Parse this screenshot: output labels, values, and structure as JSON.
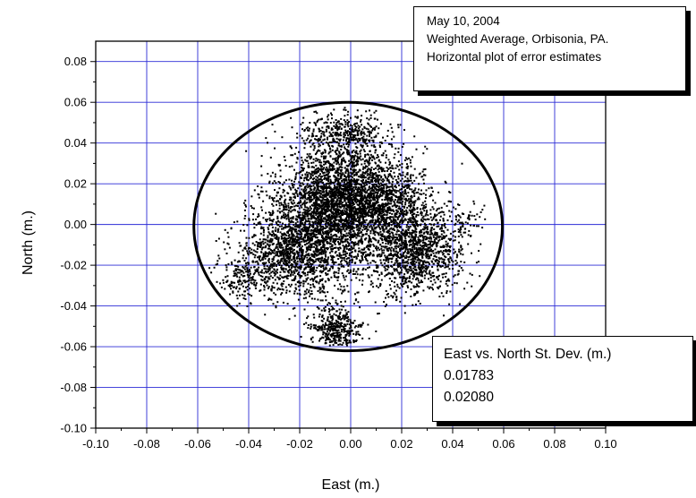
{
  "chart_data": {
    "type": "scatter",
    "title_lines": [
      "May 10, 2004",
      "Weighted Average, Orbisonia, PA.",
      "Horizontal plot of error estimates"
    ],
    "xlabel": "East (m.)",
    "ylabel": "North (m.)",
    "xlim": [
      -0.1,
      0.1
    ],
    "ylim": [
      -0.1,
      0.09
    ],
    "x_ticks": [
      "-0.10",
      "-0.08",
      "-0.06",
      "-0.04",
      "-0.02",
      "0.00",
      "0.02",
      "0.04",
      "0.06",
      "0.08",
      "0.10"
    ],
    "y_ticks": [
      "0.08",
      "0.06",
      "0.04",
      "0.02",
      "0.00",
      "-0.02",
      "-0.04",
      "-0.06",
      "-0.08",
      "-0.10"
    ],
    "grid": true,
    "grid_color": "#2b2bd6",
    "point_color": "#000000",
    "ellipse": {
      "cx": -0.001,
      "cy": -0.001,
      "rx": 0.0605,
      "ry": 0.061
    },
    "clusters": [
      {
        "cx": -0.004,
        "cy": 0.012,
        "sx": 0.011,
        "sy": 0.018,
        "count": 2600
      },
      {
        "cx": 0.025,
        "cy": -0.012,
        "sx": 0.009,
        "sy": 0.011,
        "count": 1300
      },
      {
        "cx": -0.025,
        "cy": -0.015,
        "sx": 0.01,
        "sy": 0.011,
        "count": 1100
      },
      {
        "cx": 0.012,
        "cy": 0.012,
        "sx": 0.01,
        "sy": 0.01,
        "count": 900
      },
      {
        "cx": -0.015,
        "cy": 0.002,
        "sx": 0.01,
        "sy": 0.012,
        "count": 700
      },
      {
        "cx": -0.006,
        "cy": -0.052,
        "sx": 0.005,
        "sy": 0.006,
        "count": 420
      },
      {
        "cx": -0.042,
        "cy": -0.028,
        "sx": 0.005,
        "sy": 0.005,
        "count": 120
      },
      {
        "cx": 0.045,
        "cy": 0.001,
        "sx": 0.004,
        "sy": 0.005,
        "count": 60
      },
      {
        "cx": -0.003,
        "cy": 0.045,
        "sx": 0.007,
        "sy": 0.005,
        "count": 250
      }
    ],
    "stats": {
      "heading": "East vs. North St. Dev. (m.)",
      "east_sd": "0.01783",
      "north_sd": "0.02080"
    }
  }
}
